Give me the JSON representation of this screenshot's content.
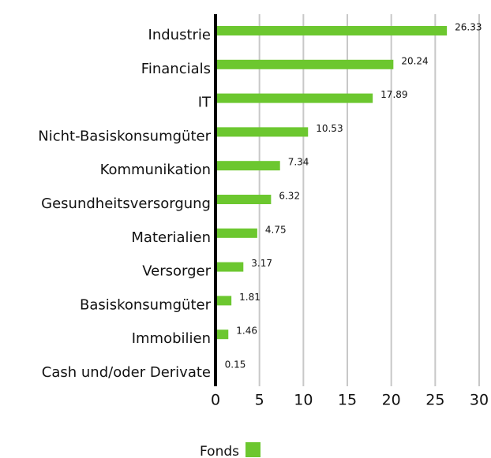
{
  "chart_data": {
    "type": "bar",
    "orientation": "horizontal",
    "categories": [
      "Industrie",
      "Financials",
      "IT",
      "Nicht-Basiskonsumgüter",
      "Kommunikation",
      "Gesundheitsversorgung",
      "Materialien",
      "Versorger",
      "Basiskonsumgüter",
      "Immobilien",
      "Cash und/oder Derivate"
    ],
    "series": [
      {
        "name": "Fonds",
        "color": "#6cc72f",
        "values": [
          26.33,
          20.24,
          17.89,
          10.53,
          7.34,
          6.32,
          4.75,
          3.17,
          1.81,
          1.46,
          0.15
        ]
      }
    ],
    "xlim": [
      0,
      30
    ],
    "xticks": [
      0,
      5,
      10,
      15,
      20,
      25,
      30
    ],
    "grid": true,
    "legend": "bottom"
  }
}
